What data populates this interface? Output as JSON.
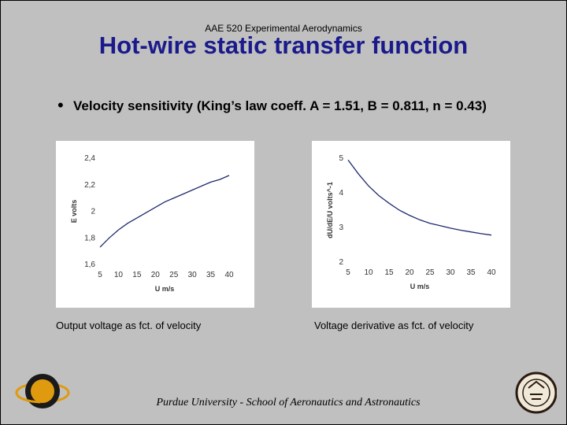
{
  "header": "AAE 520 Experimental Aerodynamics",
  "title": "Hot-wire static transfer function",
  "bullet": "Velocity sensitivity (King’s law coeff. A = 1.51, B = 0.811, n = 0.43)",
  "captions": {
    "left": "Output voltage as fct. of velocity",
    "right": "Voltage derivative as fct. of velocity"
  },
  "footer": "Purdue University - School of Aeronautics and Astronautics",
  "colors": {
    "curve": "#1f2a6e",
    "title": "#1a1a8c",
    "background": "#c0c0c0"
  },
  "chart_data": [
    {
      "type": "line",
      "xlabel": "U m/s",
      "ylabel": "E volts",
      "xlim": [
        5,
        40
      ],
      "ylim": [
        1.6,
        2.4
      ],
      "xticks": [
        "5",
        "10",
        "15",
        "20",
        "25",
        "30",
        "35",
        "40"
      ],
      "yticks": [
        "1,6",
        "1,8",
        "2",
        "2,2",
        "2,4"
      ],
      "x": [
        5,
        7.5,
        10,
        12.5,
        15,
        17.5,
        20,
        22.5,
        25,
        27.5,
        30,
        32.5,
        35,
        37.5,
        40
      ],
      "y": [
        1.73,
        1.8,
        1.86,
        1.91,
        1.95,
        1.99,
        2.03,
        2.07,
        2.1,
        2.13,
        2.16,
        2.19,
        2.22,
        2.24,
        2.27
      ]
    },
    {
      "type": "line",
      "xlabel": "U m/s",
      "ylabel": "dU/dE/U volts^-1",
      "xlim": [
        5,
        40
      ],
      "ylim": [
        2,
        5
      ],
      "xticks": [
        "5",
        "10",
        "15",
        "20",
        "25",
        "30",
        "35",
        "40"
      ],
      "yticks": [
        "2",
        "3",
        "4",
        "5"
      ],
      "x": [
        5,
        7.5,
        10,
        12.5,
        15,
        17.5,
        20,
        22.5,
        25,
        27.5,
        30,
        32.5,
        35,
        37.5,
        40
      ],
      "y": [
        4.95,
        4.55,
        4.2,
        3.92,
        3.7,
        3.5,
        3.35,
        3.22,
        3.12,
        3.05,
        2.98,
        2.92,
        2.87,
        2.82,
        2.78
      ]
    }
  ]
}
